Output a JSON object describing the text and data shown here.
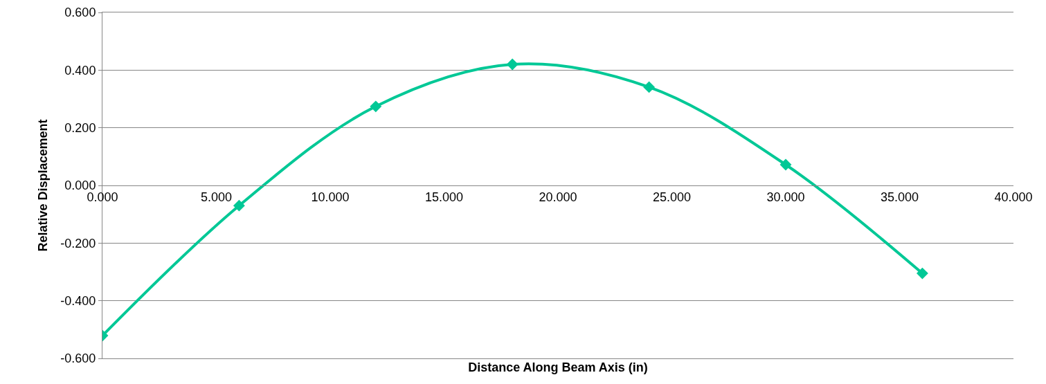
{
  "chart_data": {
    "type": "line",
    "xlabel": "Distance Along Beam Axis (in)",
    "ylabel": "Relative Displacement",
    "x": [
      0,
      6,
      12,
      18,
      24,
      30,
      36
    ],
    "series": [
      {
        "color": "#00c896",
        "values": [
          -0.521,
          -0.07,
          0.274,
          0.42,
          0.341,
          0.072,
          -0.305
        ]
      }
    ],
    "xlim": [
      0,
      40
    ],
    "xticks": [
      {
        "value": 0,
        "label": "0.000"
      },
      {
        "value": 5,
        "label": "5.000"
      },
      {
        "value": 10,
        "label": "10.000"
      },
      {
        "value": 15,
        "label": "15.000"
      },
      {
        "value": 20,
        "label": "20.000"
      },
      {
        "value": 25,
        "label": "25.000"
      },
      {
        "value": 30,
        "label": "30.000"
      },
      {
        "value": 35,
        "label": "35.000"
      },
      {
        "value": 40,
        "label": "40.000"
      }
    ],
    "ylim": [
      -0.6,
      0.6
    ],
    "yticks": [
      {
        "value": -0.6,
        "label": "-0.600"
      },
      {
        "value": -0.4,
        "label": "-0.400"
      },
      {
        "value": -0.2,
        "label": "-0.200"
      },
      {
        "value": 0,
        "label": "0.000"
      },
      {
        "value": 0.2,
        "label": "0.200"
      },
      {
        "value": 0.4,
        "label": "0.400"
      },
      {
        "value": 0.6,
        "label": "0.600"
      }
    ],
    "grid": "y",
    "marker": "diamond",
    "line_style": "solid"
  }
}
